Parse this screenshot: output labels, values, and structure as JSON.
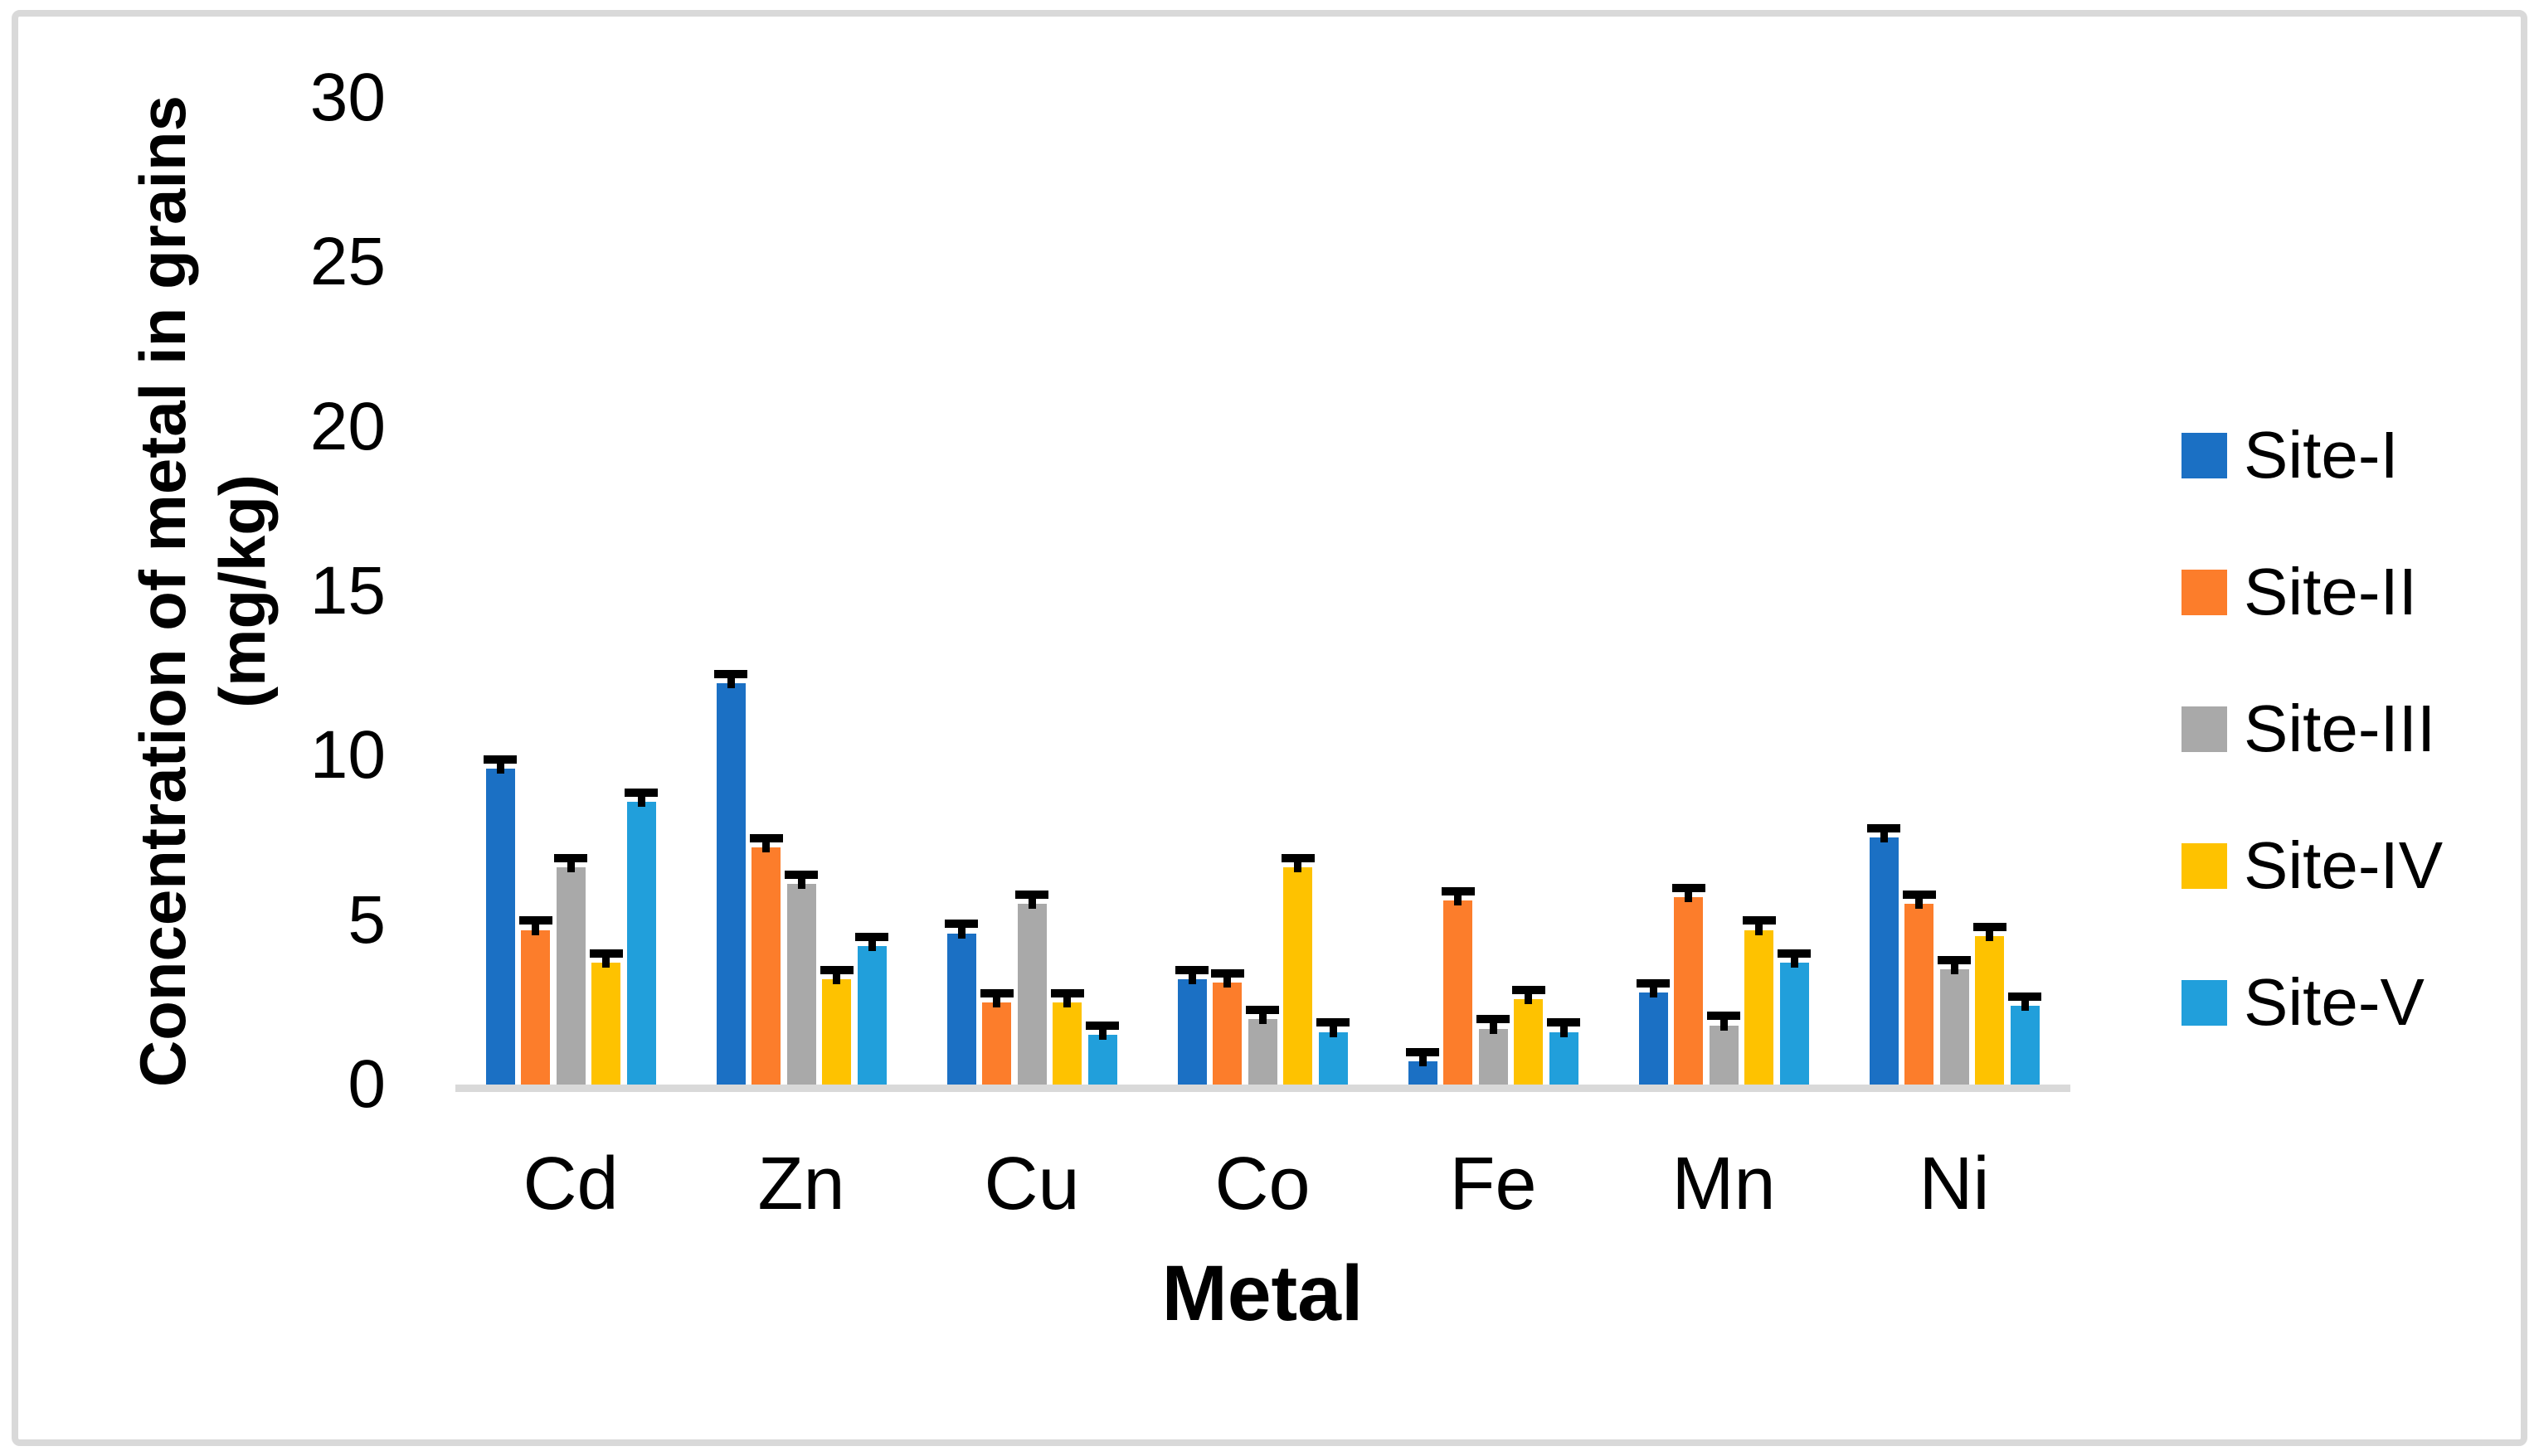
{
  "figure": {
    "background": "#FFFFFF",
    "border_color": "#D9D9D9"
  },
  "chart_data": {
    "type": "bar",
    "title": "",
    "xlabel": "Metal",
    "ylabel_line1": "Concentration of metal in grains",
    "ylabel_line2": "(mg/kg)",
    "categories": [
      "Cd",
      "Zn",
      "Cu",
      "Co",
      "Fe",
      "Mn",
      "Ni"
    ],
    "series": [
      {
        "name": "Site-I",
        "color": "#1B70C4",
        "values": [
          9.6,
          12.2,
          4.6,
          3.2,
          0.7,
          2.8,
          7.5
        ]
      },
      {
        "name": "Site-II",
        "color": "#FC7D2B",
        "values": [
          4.7,
          7.2,
          2.5,
          3.1,
          5.6,
          5.7,
          5.5
        ]
      },
      {
        "name": "Site-III",
        "color": "#A9A9A9",
        "values": [
          6.6,
          6.1,
          5.5,
          2.0,
          1.7,
          1.8,
          3.5
        ]
      },
      {
        "name": "Site-IV",
        "color": "#FEC200",
        "values": [
          3.7,
          3.2,
          2.5,
          6.6,
          2.6,
          4.7,
          4.5
        ]
      },
      {
        "name": "Site-V",
        "color": "#219FDB",
        "values": [
          8.6,
          4.2,
          1.5,
          1.6,
          1.6,
          3.7,
          2.4
        ]
      }
    ],
    "error_bar": 0.28,
    "error_bar_color": "#000000",
    "y_ticks": [
      0,
      5,
      10,
      15,
      20,
      25,
      30
    ],
    "ylim": [
      0,
      30
    ],
    "gridlines": false,
    "legend_position": "right",
    "axis_line_color": "#D9D9D9"
  }
}
